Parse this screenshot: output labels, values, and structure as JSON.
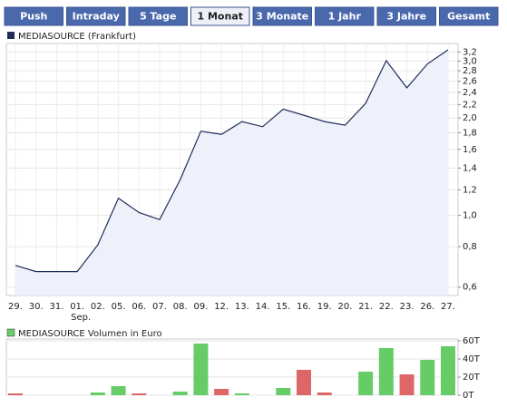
{
  "tabs": [
    {
      "label": "Push",
      "selected": false
    },
    {
      "label": "Intraday",
      "selected": false
    },
    {
      "label": "5 Tage",
      "selected": false
    },
    {
      "label": "1 Monat",
      "selected": true
    },
    {
      "label": "3 Monate",
      "selected": false
    },
    {
      "label": "1 Jahr",
      "selected": false
    },
    {
      "label": "3 Jahre",
      "selected": false
    },
    {
      "label": "Gesamt",
      "selected": false
    }
  ],
  "chart_data": [
    {
      "type": "line",
      "categories": [
        "29.",
        "30.",
        "31.",
        "01.",
        "02.",
        "05.",
        "06.",
        "07.",
        "08.",
        "09.",
        "12.",
        "13.",
        "14.",
        "15.",
        "16.",
        "19.",
        "20.",
        "21.",
        "22.",
        "23.",
        "26.",
        "27."
      ],
      "month_labels": [
        null,
        null,
        null,
        "Sep.",
        null,
        null,
        null,
        null,
        null,
        null,
        null,
        null,
        null,
        null,
        null,
        null,
        null,
        null,
        null,
        null,
        null,
        null
      ],
      "series": [
        {
          "name": "MEDIASOURCE (Frankfurt)",
          "color": "#1f2d5a",
          "values": [
            0.7,
            0.67,
            0.67,
            0.67,
            0.81,
            1.13,
            1.02,
            0.97,
            1.29,
            1.82,
            1.78,
            1.95,
            1.88,
            2.13,
            2.04,
            1.95,
            1.9,
            2.22,
            3.01,
            2.48,
            2.94,
            3.25
          ]
        }
      ],
      "fill_color": "#eef0fa",
      "log_scale": true,
      "grid": true,
      "ylim": [
        0.565,
        3.4
      ],
      "yticks": [
        {
          "value": 0.6,
          "label": "0,6"
        },
        {
          "value": 0.8,
          "label": "0,8"
        },
        {
          "value": 1.0,
          "label": "1,0"
        },
        {
          "value": 1.2,
          "label": "1,2"
        },
        {
          "value": 1.4,
          "label": "1,4"
        },
        {
          "value": 1.6,
          "label": "1,6"
        },
        {
          "value": 1.8,
          "label": "1,8"
        },
        {
          "value": 2.0,
          "label": "2,0"
        },
        {
          "value": 2.2,
          "label": "2,2"
        },
        {
          "value": 2.4,
          "label": "2,4"
        },
        {
          "value": 2.6,
          "label": "2,6"
        },
        {
          "value": 2.8,
          "label": "2,8"
        },
        {
          "value": 3.0,
          "label": "3,0"
        },
        {
          "value": 3.2,
          "label": "3,2"
        }
      ]
    },
    {
      "type": "bar",
      "series": [
        {
          "name": "MEDIASOURCE Volumen in Euro",
          "color": "#66cc66",
          "bar_colors": [
            "#dd6666",
            "#66cc66",
            "#66cc66",
            "#66cc66",
            "#66cc66",
            "#66cc66",
            "#dd6666",
            "#66cc66",
            "#66cc66",
            "#66cc66",
            "#dd6666",
            "#66cc66",
            "#66cc66",
            "#66cc66",
            "#dd6666",
            "#dd6666",
            "#66cc66",
            "#66cc66",
            "#66cc66",
            "#dd6666",
            "#66cc66",
            "#66cc66"
          ],
          "values": [
            2000,
            0,
            0,
            0,
            3000,
            10000,
            2000,
            0,
            4000,
            57000,
            7000,
            2000,
            0,
            8000,
            28000,
            3000,
            0,
            26000,
            52000,
            23000,
            39000,
            54000
          ]
        }
      ],
      "grid": true,
      "ylim": [
        0,
        62000
      ],
      "yticks": [
        {
          "value": 0,
          "label": "0T"
        },
        {
          "value": 20000,
          "label": "20T"
        },
        {
          "value": 40000,
          "label": "40T"
        },
        {
          "value": 60000,
          "label": "60T"
        }
      ]
    }
  ]
}
